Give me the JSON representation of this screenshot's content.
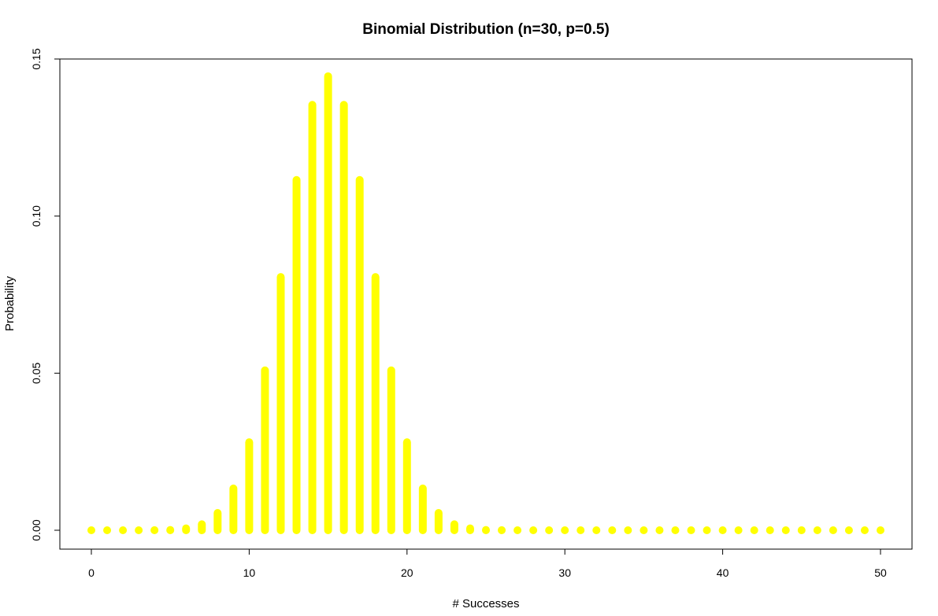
{
  "chart_data": {
    "type": "bar",
    "title": "Binomial Distribution (n=30, p=0.5)",
    "xlabel": "# Successes",
    "ylabel": "Probability",
    "xlim": [
      0,
      50
    ],
    "ylim": [
      0,
      0.15
    ],
    "xticks": [
      0,
      10,
      20,
      30,
      40,
      50
    ],
    "yticks": [
      0.0,
      0.05,
      0.1,
      0.15
    ],
    "ytick_labels": [
      "0.00",
      "0.05",
      "0.10",
      "0.15"
    ],
    "bar_color": "#FFFF00",
    "grid": false,
    "x": [
      0,
      1,
      2,
      3,
      4,
      5,
      6,
      7,
      8,
      9,
      10,
      11,
      12,
      13,
      14,
      15,
      16,
      17,
      18,
      19,
      20,
      21,
      22,
      23,
      24,
      25,
      26,
      27,
      28,
      29,
      30,
      31,
      32,
      33,
      34,
      35,
      36,
      37,
      38,
      39,
      40,
      41,
      42,
      43,
      44,
      45,
      46,
      47,
      48,
      49,
      50
    ],
    "values": [
      1e-09,
      3e-08,
      4e-07,
      4e-06,
      3e-05,
      0.0001,
      0.0006,
      0.0019,
      0.0055,
      0.0133,
      0.028,
      0.0509,
      0.0806,
      0.1115,
      0.1354,
      0.1445,
      0.1354,
      0.1115,
      0.0806,
      0.0509,
      0.028,
      0.0133,
      0.0055,
      0.0019,
      0.0006,
      0.0001,
      3e-05,
      4e-06,
      4e-07,
      3e-08,
      1e-09,
      0,
      0,
      0,
      0,
      0,
      0,
      0,
      0,
      0,
      0,
      0,
      0,
      0,
      0,
      0,
      0,
      0,
      0,
      0,
      0
    ]
  }
}
